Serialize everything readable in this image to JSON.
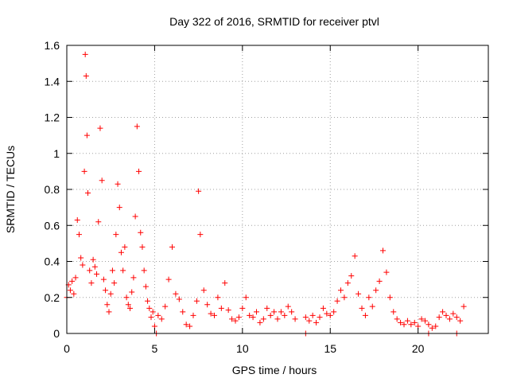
{
  "chart_data": {
    "type": "scatter",
    "title": "Day 322 of 2016, SRMTID for receiver ptvl",
    "xlabel": "GPS time / hours",
    "ylabel": "SRMTID / TECUs",
    "xlim": [
      0,
      24
    ],
    "ylim": [
      0,
      1.6
    ],
    "xticks": [
      0,
      5,
      10,
      15,
      20
    ],
    "xtick_labels": [
      "0",
      "5",
      "10",
      "15",
      "20"
    ],
    "yticks": [
      0,
      0.2,
      0.4,
      0.6,
      0.8,
      1.0,
      1.2,
      1.4,
      1.6
    ],
    "ytick_labels": [
      "0",
      "0.2",
      "0.4",
      "0.6",
      "0.8",
      "1",
      "1.2",
      "1.4",
      "1.6"
    ],
    "grid": true,
    "marker": "+",
    "color": "#ff0000",
    "series": [
      {
        "name": "SRMTID",
        "x": [
          0.0,
          0.1,
          0.2,
          0.3,
          0.4,
          0.5,
          0.6,
          0.7,
          0.8,
          0.9,
          1.0,
          1.05,
          1.1,
          1.15,
          1.2,
          1.3,
          1.4,
          1.5,
          1.6,
          1.7,
          1.8,
          1.9,
          2.0,
          2.1,
          2.2,
          2.3,
          2.4,
          2.5,
          2.6,
          2.7,
          2.8,
          2.9,
          3.0,
          3.1,
          3.2,
          3.3,
          3.4,
          3.5,
          3.6,
          3.7,
          3.8,
          3.9,
          4.0,
          4.1,
          4.2,
          4.3,
          4.4,
          4.5,
          4.6,
          4.7,
          4.8,
          4.9,
          5.0,
          5.2,
          5.4,
          5.6,
          5.8,
          6.0,
          6.2,
          6.4,
          6.6,
          6.8,
          7.0,
          7.2,
          7.4,
          7.5,
          7.6,
          7.8,
          8.0,
          8.2,
          8.4,
          8.6,
          8.8,
          9.0,
          9.2,
          9.4,
          9.6,
          9.8,
          10.0,
          10.2,
          10.4,
          10.6,
          10.8,
          11.0,
          11.2,
          11.4,
          11.6,
          11.8,
          12.0,
          12.2,
          12.4,
          12.6,
          12.8,
          13.0,
          13.6,
          13.8,
          14.0,
          14.2,
          14.4,
          14.6,
          14.8,
          15.0,
          15.2,
          15.4,
          15.6,
          15.8,
          16.0,
          16.2,
          16.4,
          16.6,
          16.8,
          17.0,
          17.2,
          17.4,
          17.6,
          17.8,
          18.0,
          18.2,
          18.4,
          18.6,
          18.8,
          19.0,
          19.2,
          19.4,
          19.6,
          19.8,
          20.0,
          20.2,
          20.4,
          20.6,
          20.8,
          21.0,
          21.2,
          21.4,
          21.6,
          21.8,
          22.0,
          22.2,
          22.4,
          22.6
        ],
        "y": [
          0.2,
          0.27,
          0.24,
          0.29,
          0.22,
          0.31,
          0.63,
          0.55,
          0.42,
          0.38,
          0.9,
          1.55,
          1.43,
          1.1,
          0.78,
          0.35,
          0.28,
          0.41,
          0.37,
          0.33,
          0.62,
          1.14,
          0.85,
          0.3,
          0.24,
          0.16,
          0.12,
          0.22,
          0.35,
          0.28,
          0.55,
          0.83,
          0.7,
          0.45,
          0.35,
          0.48,
          0.2,
          0.16,
          0.14,
          0.23,
          0.31,
          0.65,
          1.15,
          0.9,
          0.56,
          0.48,
          0.35,
          0.26,
          0.18,
          0.14,
          0.09,
          0.12,
          0.04,
          0.1,
          0.08,
          0.15,
          0.3,
          0.48,
          0.22,
          0.19,
          0.12,
          0.05,
          0.04,
          0.1,
          0.18,
          0.79,
          0.55,
          0.24,
          0.16,
          0.11,
          0.1,
          0.2,
          0.14,
          0.28,
          0.13,
          0.08,
          0.07,
          0.09,
          0.14,
          0.2,
          0.1,
          0.09,
          0.12,
          0.06,
          0.08,
          0.14,
          0.1,
          0.12,
          0.08,
          0.12,
          0.1,
          0.15,
          0.12,
          0.08,
          0.09,
          0.07,
          0.1,
          0.06,
          0.09,
          0.14,
          0.11,
          0.1,
          0.12,
          0.18,
          0.24,
          0.2,
          0.28,
          0.32,
          0.43,
          0.22,
          0.14,
          0.1,
          0.2,
          0.15,
          0.24,
          0.29,
          0.46,
          0.34,
          0.2,
          0.12,
          0.08,
          0.06,
          0.05,
          0.07,
          0.05,
          0.06,
          0.04,
          0.08,
          0.07,
          0.05,
          0.03,
          0.04,
          0.09,
          0.12,
          0.1,
          0.08,
          0.11,
          0.09,
          0.07,
          0.15
        ]
      }
    ],
    "outliers": [
      {
        "x": 5.1,
        "y": 0
      },
      {
        "x": 13.6,
        "y": 0
      },
      {
        "x": 20.6,
        "y": 0
      },
      {
        "x": 22.2,
        "y": 0
      }
    ]
  }
}
